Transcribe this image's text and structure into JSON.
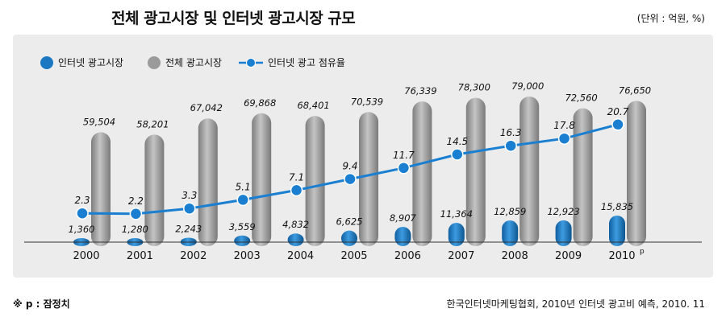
{
  "title": "전체 광고시장 및 인터넷 광고시장 규모",
  "unit": "(단위 : 억원, %)",
  "footnote": "※ p : 잠정치",
  "source": "한국인터넷마케팅협회, 2010년 인터넷 광고비 예측, 2010. 11",
  "colors": {
    "internet": "#1a78c2",
    "total": "#9a9a9a",
    "share": "#1a7fd0",
    "panel": "#ececec"
  },
  "chart_data": {
    "type": "bar",
    "categories": [
      "2000",
      "2001",
      "2002",
      "2003",
      "2004",
      "2005",
      "2006",
      "2007",
      "2008",
      "2009",
      "2010"
    ],
    "category_superscript": [
      "",
      "",
      "",
      "",
      "",
      "",
      "",
      "",
      "",
      "",
      "p"
    ],
    "legend_position": "top-left",
    "series": [
      {
        "name": "인터넷 광고시장",
        "kind": "bar",
        "values": [
          1360,
          1280,
          2243,
          3559,
          4832,
          6625,
          8907,
          11364,
          12859,
          12923,
          15835
        ],
        "labels": [
          "1,360",
          "1,280",
          "2,243",
          "3,559",
          "4,832",
          "6,625",
          "8,907",
          "11,364",
          "12,859",
          "12,923",
          "15,835"
        ]
      },
      {
        "name": "전체 광고시장",
        "kind": "bar",
        "values": [
          59504,
          58201,
          67042,
          69868,
          68401,
          70539,
          76339,
          78300,
          79000,
          72560,
          76650
        ],
        "labels": [
          "59,504",
          "58,201",
          "67,042",
          "69,868",
          "68,401",
          "70,539",
          "76,339",
          "78,300",
          "79,000",
          "72,560",
          "76,650"
        ]
      },
      {
        "name": "인터넷 광고 점유율",
        "kind": "line",
        "values": [
          2.3,
          2.2,
          3.3,
          5.1,
          7.1,
          9.4,
          11.7,
          14.5,
          16.3,
          17.8,
          20.7
        ],
        "labels": [
          "2.3",
          "2.2",
          "3.3",
          "5.1",
          "7.1",
          "9.4",
          "11.7",
          "14.5",
          "16.3",
          "17.8",
          "20.7"
        ]
      }
    ]
  }
}
